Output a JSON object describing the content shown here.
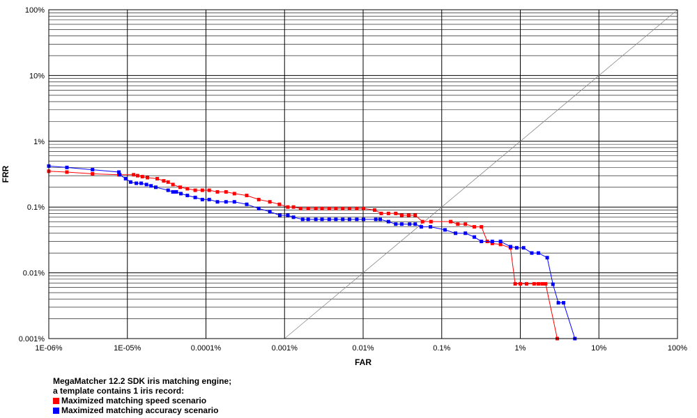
{
  "chart_data": {
    "type": "line",
    "xlabel": "FAR",
    "ylabel": "FRR",
    "x_scale": "log",
    "y_scale": "log",
    "xlim": [
      1e-06,
      100
    ],
    "ylim": [
      0.001,
      100
    ],
    "x_ticks": [
      {
        "value": 1e-06,
        "label": "1E-06%"
      },
      {
        "value": 1e-05,
        "label": "1E-05%"
      },
      {
        "value": 0.0001,
        "label": "0.0001%"
      },
      {
        "value": 0.001,
        "label": "0.001%"
      },
      {
        "value": 0.01,
        "label": "0.01%"
      },
      {
        "value": 0.1,
        "label": "0.1%"
      },
      {
        "value": 1,
        "label": "1%"
      },
      {
        "value": 10,
        "label": "10%"
      },
      {
        "value": 100,
        "label": "100%"
      }
    ],
    "y_ticks": [
      {
        "value": 100,
        "label": "100%"
      },
      {
        "value": 10,
        "label": "10%"
      },
      {
        "value": 1,
        "label": "1%"
      },
      {
        "value": 0.1,
        "label": "0.1%"
      },
      {
        "value": 0.01,
        "label": "0.01%"
      },
      {
        "value": 0.001,
        "label": "0.001%"
      }
    ],
    "grid": true,
    "diagonal_reference_line": true,
    "series": [
      {
        "name": "Maximized matching speed scenario",
        "color": "#ff0000",
        "x": [
          1e-06,
          1.7e-06,
          3.6e-06,
          7.8e-06,
          1.2e-05,
          1.35e-05,
          1.55e-05,
          1.8e-05,
          2.4e-05,
          2.9e-05,
          3.3e-05,
          3.8e-05,
          4.7e-05,
          5.8e-05,
          7.3e-05,
          9e-05,
          0.00011,
          0.00014,
          0.00018,
          0.00023,
          0.00033,
          0.00047,
          0.00065,
          0.00086,
          0.0011,
          0.0013,
          0.0016,
          0.002,
          0.0025,
          0.003,
          0.0037,
          0.0045,
          0.0055,
          0.0067,
          0.0083,
          0.0101,
          0.014,
          0.017,
          0.021,
          0.026,
          0.031,
          0.038,
          0.046,
          0.057,
          0.073,
          0.13,
          0.16,
          0.2,
          0.26,
          0.32,
          0.38,
          0.44,
          0.56,
          0.75,
          0.86,
          1.0,
          1.2,
          1.5,
          1.7,
          1.9,
          2.1,
          2.95
        ],
        "y": [
          0.35,
          0.34,
          0.32,
          0.31,
          0.31,
          0.3,
          0.29,
          0.28,
          0.27,
          0.25,
          0.24,
          0.22,
          0.2,
          0.19,
          0.18,
          0.18,
          0.18,
          0.17,
          0.17,
          0.16,
          0.15,
          0.13,
          0.12,
          0.11,
          0.1,
          0.1,
          0.095,
          0.095,
          0.095,
          0.095,
          0.095,
          0.095,
          0.095,
          0.095,
          0.095,
          0.095,
          0.09,
          0.08,
          0.08,
          0.08,
          0.075,
          0.075,
          0.075,
          0.06,
          0.06,
          0.06,
          0.055,
          0.055,
          0.05,
          0.05,
          0.03,
          0.028,
          0.027,
          0.024,
          0.0068,
          0.0068,
          0.0068,
          0.0068,
          0.0068,
          0.0068,
          0.0068,
          0.001
        ]
      },
      {
        "name": "Maximized matching accuracy scenario",
        "color": "#0000ff",
        "x": [
          1e-06,
          1.7e-06,
          3.6e-06,
          7.8e-06,
          8e-06,
          9.5e-06,
          1.1e-05,
          1.3e-05,
          1.5e-05,
          1.75e-05,
          2e-05,
          2.3e-05,
          3.3e-05,
          3.8e-05,
          4.2e-05,
          4.8e-05,
          5.8e-05,
          7.3e-05,
          9e-05,
          0.00011,
          0.00014,
          0.00018,
          0.00023,
          0.00033,
          0.00047,
          0.00065,
          0.00087,
          0.0011,
          0.0013,
          0.0017,
          0.002,
          0.0025,
          0.003,
          0.0037,
          0.0045,
          0.0055,
          0.0067,
          0.0083,
          0.0101,
          0.0145,
          0.0165,
          0.021,
          0.026,
          0.031,
          0.039,
          0.046,
          0.055,
          0.072,
          0.11,
          0.15,
          0.2,
          0.26,
          0.32,
          0.44,
          0.56,
          0.75,
          0.9,
          1.1,
          1.4,
          1.7,
          2.2,
          2.6,
          3.05,
          3.55,
          4.95
        ],
        "y": [
          0.42,
          0.4,
          0.37,
          0.34,
          0.31,
          0.27,
          0.24,
          0.23,
          0.23,
          0.22,
          0.21,
          0.2,
          0.18,
          0.17,
          0.17,
          0.16,
          0.15,
          0.14,
          0.13,
          0.13,
          0.12,
          0.12,
          0.12,
          0.11,
          0.095,
          0.085,
          0.075,
          0.075,
          0.07,
          0.065,
          0.065,
          0.065,
          0.065,
          0.065,
          0.065,
          0.065,
          0.065,
          0.065,
          0.065,
          0.065,
          0.065,
          0.06,
          0.055,
          0.055,
          0.055,
          0.055,
          0.05,
          0.05,
          0.045,
          0.04,
          0.04,
          0.035,
          0.03,
          0.03,
          0.03,
          0.025,
          0.024,
          0.024,
          0.02,
          0.02,
          0.017,
          0.0067,
          0.0035,
          0.0035,
          0.001
        ]
      }
    ]
  },
  "caption": {
    "line1": "MegaMatcher 12.2 SDK iris matching engine;",
    "line2": "a template contains 1 iris record:",
    "legend": [
      {
        "label": "Maximized matching speed scenario",
        "color": "#ff0000"
      },
      {
        "label": "Maximized matching accuracy scenario",
        "color": "#0000ff"
      }
    ]
  }
}
